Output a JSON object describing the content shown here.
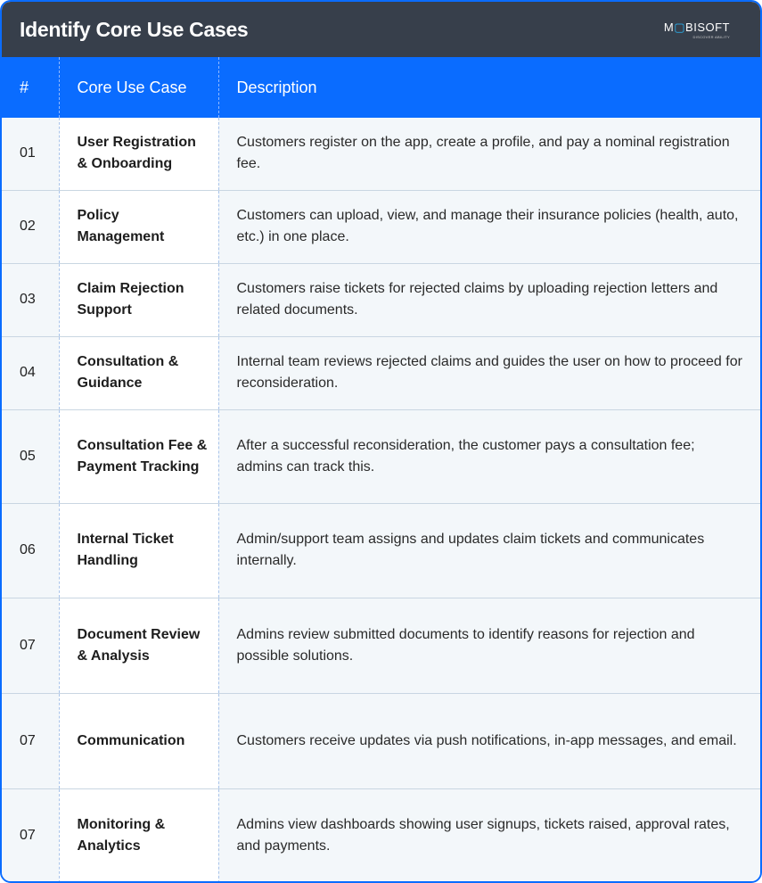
{
  "title": "Identify Core Use Cases",
  "logo": {
    "wordmark": "MOBISOFT",
    "tagline": "DISCOVER ABILITY"
  },
  "headers": [
    "#",
    "Core Use Case",
    "Description"
  ],
  "rows": [
    {
      "num": "01",
      "use_case": "User Registration & Onboarding",
      "description": "Customers register on the app, create a profile, and pay a nominal registration fee."
    },
    {
      "num": "02",
      "use_case": "Policy Management",
      "description": "Customers can upload, view, and manage their insurance policies (health, auto, etc.) in one place."
    },
    {
      "num": "03",
      "use_case": "Claim Rejection Support",
      "description": "Customers raise tickets for rejected claims by uploading rejection letters and related documents."
    },
    {
      "num": "04",
      "use_case": "Consultation & Guidance",
      "description": "Internal team reviews rejected claims and guides the user on how to proceed for reconsideration."
    },
    {
      "num": "05",
      "use_case": "Consultation Fee & Payment Tracking",
      "description": "After a successful reconsideration, the customer pays a consultation fee; admins can track this."
    },
    {
      "num": "06",
      "use_case": "Internal Ticket Handling",
      "description": "Admin/support team assigns and updates claim tickets and communicates internally."
    },
    {
      "num": "07",
      "use_case": "Document Review & Analysis",
      "description": "Admins review submitted documents to identify reasons for rejection and possible solutions."
    },
    {
      "num": "07",
      "use_case": "Communication",
      "description": "Customers receive updates via push notifications, in-app messages, and email."
    },
    {
      "num": "07",
      "use_case": "Monitoring & Analytics",
      "description": "Admins view dashboards showing user signups, tickets raised, approval rates, and payments."
    }
  ]
}
